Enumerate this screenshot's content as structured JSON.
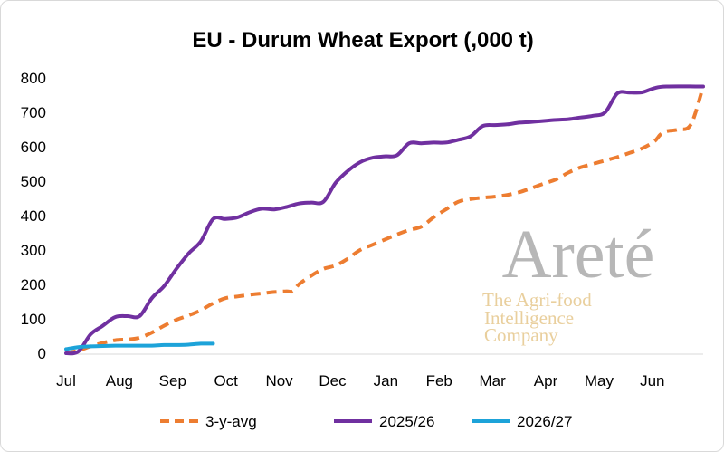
{
  "chart_data": {
    "type": "line",
    "title": "EU - Durum Wheat Export (,000 t)",
    "xlabel": "",
    "ylabel": "",
    "ylim": [
      0,
      800
    ],
    "yticks": [
      0,
      100,
      200,
      300,
      400,
      500,
      600,
      700,
      800
    ],
    "xlim": [
      0,
      52
    ],
    "categories": [
      "Jul",
      "Aug",
      "Sep",
      "Oct",
      "Nov",
      "Dec",
      "Jan",
      "Feb",
      "Mar",
      "Apr",
      "May",
      "Jun"
    ],
    "category_positions": [
      0,
      4.35,
      8.7,
      13.05,
      17.4,
      21.75,
      26.1,
      30.45,
      34.8,
      39.15,
      43.5,
      47.85
    ],
    "grid": false,
    "legend": "bottom",
    "series": [
      {
        "name": "3-y-avg",
        "color": "#ed7d31",
        "style": "dashed",
        "points": [
          [
            0,
            0
          ],
          [
            1,
            8
          ],
          [
            2,
            20
          ],
          [
            3,
            30
          ],
          [
            4,
            38
          ],
          [
            5,
            40
          ],
          [
            6,
            45
          ],
          [
            7,
            60
          ],
          [
            8,
            80
          ],
          [
            9,
            97
          ],
          [
            10,
            110
          ],
          [
            11,
            125
          ],
          [
            12,
            145
          ],
          [
            13,
            160
          ],
          [
            14,
            165
          ],
          [
            15,
            170
          ],
          [
            16,
            174
          ],
          [
            17,
            178
          ],
          [
            18,
            180
          ],
          [
            18.5,
            180
          ],
          [
            19,
            200
          ],
          [
            20,
            225
          ],
          [
            21,
            245
          ],
          [
            22,
            255
          ],
          [
            23,
            275
          ],
          [
            24,
            300
          ],
          [
            25,
            315
          ],
          [
            26,
            330
          ],
          [
            27,
            345
          ],
          [
            28,
            358
          ],
          [
            29,
            368
          ],
          [
            30,
            395
          ],
          [
            31,
            418
          ],
          [
            32,
            440
          ],
          [
            33,
            448
          ],
          [
            34,
            452
          ],
          [
            35,
            455
          ],
          [
            36,
            460
          ],
          [
            37,
            468
          ],
          [
            38,
            480
          ],
          [
            39,
            493
          ],
          [
            40,
            505
          ],
          [
            41,
            525
          ],
          [
            42,
            540
          ],
          [
            43,
            550
          ],
          [
            44,
            560
          ],
          [
            45,
            570
          ],
          [
            46,
            582
          ],
          [
            47,
            595
          ],
          [
            48,
            615
          ],
          [
            48.5,
            635
          ],
          [
            49,
            645
          ],
          [
            50,
            650
          ],
          [
            51,
            665
          ],
          [
            52,
            775
          ]
        ]
      },
      {
        "name": "2025/26",
        "color": "#7030a0",
        "style": "solid",
        "points": [
          [
            0,
            0
          ],
          [
            1,
            5
          ],
          [
            2,
            55
          ],
          [
            3,
            80
          ],
          [
            4,
            105
          ],
          [
            5,
            108
          ],
          [
            6,
            108
          ],
          [
            7,
            160
          ],
          [
            8,
            195
          ],
          [
            9,
            245
          ],
          [
            10,
            290
          ],
          [
            11,
            325
          ],
          [
            12,
            390
          ],
          [
            13,
            390
          ],
          [
            14,
            395
          ],
          [
            15,
            410
          ],
          [
            16,
            420
          ],
          [
            17,
            418
          ],
          [
            18,
            425
          ],
          [
            19,
            435
          ],
          [
            20,
            438
          ],
          [
            21,
            440
          ],
          [
            22,
            495
          ],
          [
            23,
            530
          ],
          [
            24,
            555
          ],
          [
            25,
            568
          ],
          [
            26,
            572
          ],
          [
            27,
            575
          ],
          [
            28,
            610
          ],
          [
            29,
            610
          ],
          [
            30,
            612
          ],
          [
            31,
            612
          ],
          [
            32,
            620
          ],
          [
            33,
            630
          ],
          [
            34,
            660
          ],
          [
            35,
            663
          ],
          [
            36,
            665
          ],
          [
            37,
            670
          ],
          [
            38,
            672
          ],
          [
            39,
            675
          ],
          [
            40,
            678
          ],
          [
            41,
            680
          ],
          [
            42,
            685
          ],
          [
            43,
            690
          ],
          [
            44,
            700
          ],
          [
            45,
            755
          ],
          [
            46,
            757
          ],
          [
            47,
            758
          ],
          [
            48,
            770
          ],
          [
            49,
            775
          ],
          [
            52,
            775
          ]
        ]
      },
      {
        "name": "2026/27",
        "color": "#1da3d9",
        "style": "solid",
        "points": [
          [
            0,
            12
          ],
          [
            1,
            18
          ],
          [
            2,
            20
          ],
          [
            3,
            21
          ],
          [
            4,
            22
          ],
          [
            5,
            22
          ],
          [
            6,
            22
          ],
          [
            7,
            22
          ],
          [
            8,
            24
          ],
          [
            9,
            24
          ],
          [
            10,
            25
          ],
          [
            11,
            28
          ],
          [
            12,
            28
          ]
        ]
      }
    ]
  },
  "watermark": {
    "brand": "Areté",
    "tagline_lines": [
      "The Agri-food",
      "Intelligence",
      "Company"
    ]
  }
}
